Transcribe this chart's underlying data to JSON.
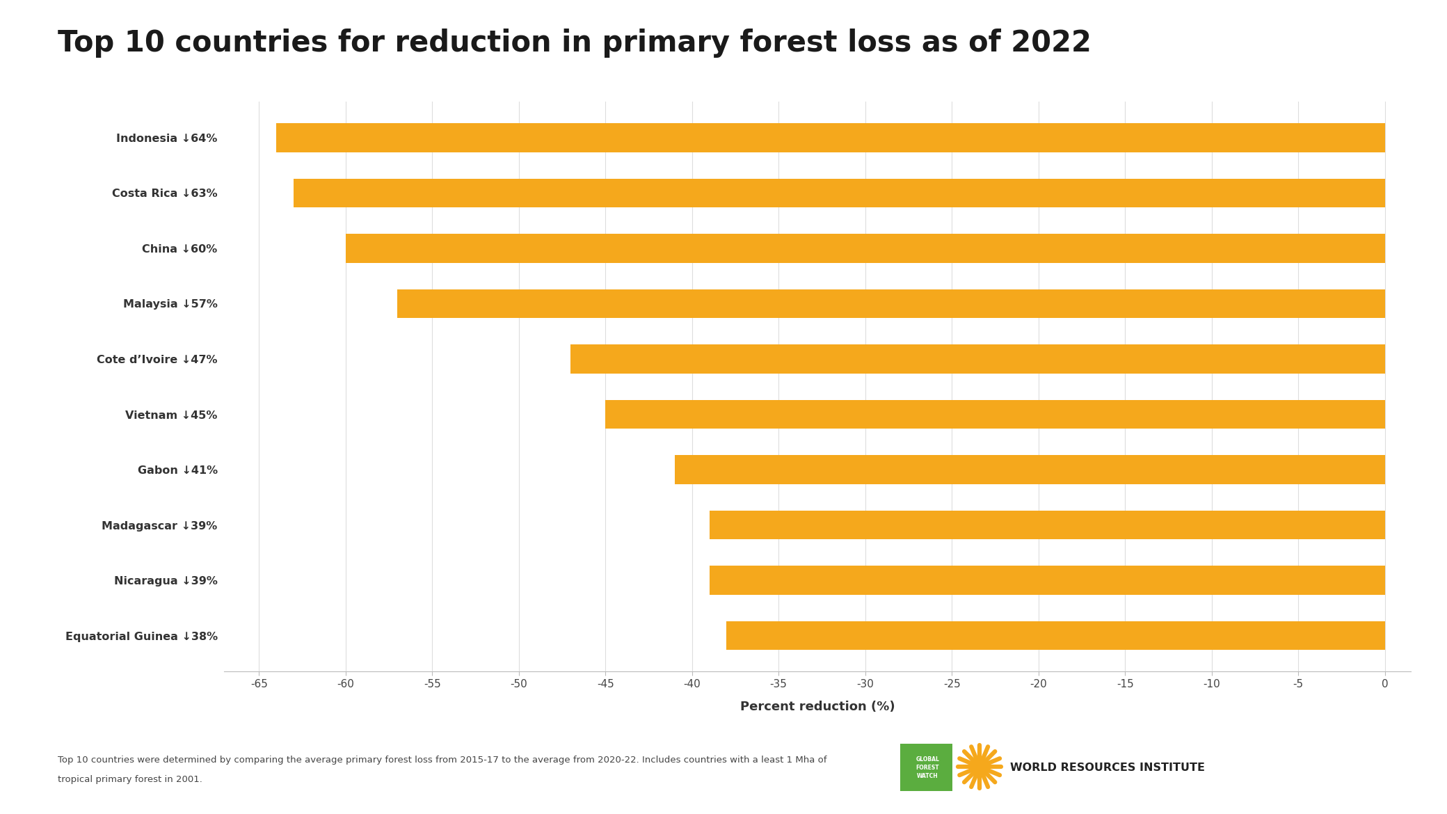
{
  "title": "Top 10 countries for reduction in primary forest loss as of 2022",
  "categories": [
    "Indonesia ↓3 64%",
    "Costa Rica ↓3 63%",
    "China ↓3 60%",
    "Malaysia ↓3 57%",
    "Cote d’Ivoire ↓3 47%",
    "Vietnam ↓3 45%",
    "Gabon ↓3 41%",
    "Madagascar ↓3 39%",
    "Nicaragua ↓3 39%",
    "Equatorial Guinea ↓3 38%"
  ],
  "categories_display": [
    "Indonesia ↓64%",
    "Costa Rica ↓63%",
    "China ↓60%",
    "Malaysia ↓57%",
    "Cote d’Ivoire ↓47%",
    "Vietnam ↓45%",
    "Gabon ↓41%",
    "Madagascar ↓39%",
    "Nicaragua ↓39%",
    "Equatorial Guinea ↓38%"
  ],
  "values": [
    -64,
    -63,
    -60,
    -57,
    -47,
    -45,
    -41,
    -39,
    -39,
    -38
  ],
  "bar_color": "#F5A81C",
  "background_color": "#FFFFFF",
  "xlabel": "Percent reduction (%)",
  "xlim": [
    -67,
    1.5
  ],
  "xticks": [
    -65,
    -60,
    -55,
    -50,
    -45,
    -40,
    -35,
    -30,
    -25,
    -20,
    -15,
    -10,
    -5,
    0
  ],
  "title_fontsize": 30,
  "label_fontsize": 11.5,
  "tick_fontsize": 11,
  "xlabel_fontsize": 13,
  "footnote_line1": "Top 10 countries were determined by comparing the average primary forest loss from 2015-17 to the average from 2020-22. Includes countries with a least 1 Mha of",
  "footnote_line2": "tropical primary forest in 2001.",
  "footnote_fontsize": 9.5
}
